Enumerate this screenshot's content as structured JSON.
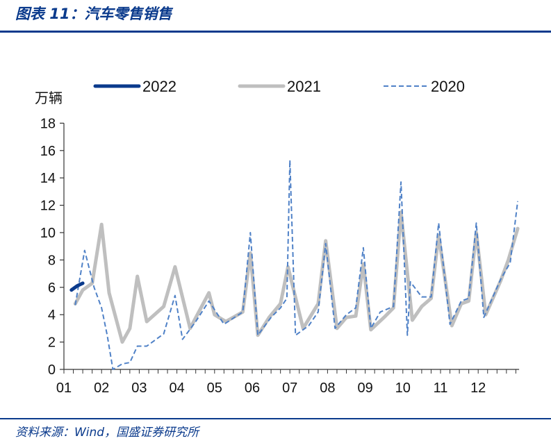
{
  "header": {
    "title": "图表 11：汽车零售销售"
  },
  "footer": {
    "source": "资料来源：Wind，国盛证券研究所"
  },
  "chart_data": {
    "type": "line",
    "ylabel": "万辆",
    "ylim": [
      0,
      18
    ],
    "yticks": [
      0,
      2,
      4,
      6,
      8,
      10,
      12,
      14,
      16,
      18
    ],
    "categories": [
      "01",
      "02",
      "03",
      "04",
      "05",
      "06",
      "07",
      "08",
      "09",
      "10",
      "11",
      "12"
    ],
    "legend_position": "top",
    "grid": false,
    "series": [
      {
        "name": "2022",
        "color": "#0a3a8c",
        "style": "solid-thick",
        "points": [
          [
            1.2,
            5.8
          ],
          [
            1.35,
            6.1
          ],
          [
            1.5,
            6.3
          ]
        ]
      },
      {
        "name": "2021",
        "color": "#bfbfbf",
        "style": "solid-wide",
        "points": [
          [
            1.3,
            4.8
          ],
          [
            1.5,
            5.8
          ],
          [
            1.75,
            6.3
          ],
          [
            2.0,
            10.6
          ],
          [
            2.2,
            5.6
          ],
          [
            2.55,
            2.0
          ],
          [
            2.75,
            3.0
          ],
          [
            2.95,
            6.8
          ],
          [
            3.2,
            3.5
          ],
          [
            3.65,
            4.6
          ],
          [
            3.95,
            7.5
          ],
          [
            4.35,
            3.0
          ],
          [
            4.85,
            5.6
          ],
          [
            5.0,
            4.0
          ],
          [
            5.3,
            3.5
          ],
          [
            5.75,
            4.2
          ],
          [
            5.95,
            8.5
          ],
          [
            6.15,
            2.5
          ],
          [
            6.45,
            3.8
          ],
          [
            6.75,
            4.8
          ],
          [
            6.95,
            7.5
          ],
          [
            7.35,
            3.0
          ],
          [
            7.75,
            4.8
          ],
          [
            7.95,
            9.4
          ],
          [
            8.25,
            3.0
          ],
          [
            8.5,
            3.8
          ],
          [
            8.75,
            3.9
          ],
          [
            8.95,
            7.7
          ],
          [
            9.15,
            2.9
          ],
          [
            9.5,
            3.8
          ],
          [
            9.75,
            4.5
          ],
          [
            9.95,
            11.5
          ],
          [
            10.25,
            3.6
          ],
          [
            10.5,
            4.6
          ],
          [
            10.75,
            5.2
          ],
          [
            10.95,
            9.8
          ],
          [
            11.3,
            3.2
          ],
          [
            11.55,
            4.8
          ],
          [
            11.75,
            5.0
          ],
          [
            11.95,
            10.0
          ],
          [
            12.2,
            4.0
          ],
          [
            12.6,
            6.5
          ],
          [
            12.8,
            8.0
          ],
          [
            13.05,
            10.3
          ]
        ]
      },
      {
        "name": "2020",
        "color": "#4f81c7",
        "style": "dashed",
        "points": [
          [
            1.3,
            4.7
          ],
          [
            1.55,
            8.7
          ],
          [
            1.8,
            6.0
          ],
          [
            2.0,
            4.5
          ],
          [
            2.15,
            2.5
          ],
          [
            2.3,
            0.0
          ],
          [
            2.55,
            0.4
          ],
          [
            2.75,
            0.5
          ],
          [
            2.95,
            1.7
          ],
          [
            3.2,
            1.7
          ],
          [
            3.65,
            2.6
          ],
          [
            3.95,
            5.4
          ],
          [
            4.15,
            2.2
          ],
          [
            4.5,
            3.5
          ],
          [
            4.85,
            5.0
          ],
          [
            5.25,
            3.3
          ],
          [
            5.75,
            4.2
          ],
          [
            5.95,
            10.0
          ],
          [
            6.15,
            2.5
          ],
          [
            6.5,
            3.8
          ],
          [
            6.75,
            4.5
          ],
          [
            6.92,
            5.2
          ],
          [
            7.0,
            15.3
          ],
          [
            7.15,
            2.5
          ],
          [
            7.5,
            3.2
          ],
          [
            7.75,
            4.2
          ],
          [
            7.95,
            9.2
          ],
          [
            8.2,
            3.0
          ],
          [
            8.5,
            4.0
          ],
          [
            8.75,
            4.5
          ],
          [
            8.95,
            8.9
          ],
          [
            9.15,
            3.0
          ],
          [
            9.4,
            4.2
          ],
          [
            9.75,
            4.6
          ],
          [
            9.95,
            13.7
          ],
          [
            10.12,
            2.5
          ],
          [
            10.2,
            6.4
          ],
          [
            10.5,
            5.3
          ],
          [
            10.75,
            5.3
          ],
          [
            10.95,
            10.7
          ],
          [
            11.25,
            3.3
          ],
          [
            11.55,
            5.0
          ],
          [
            11.75,
            5.2
          ],
          [
            11.95,
            10.7
          ],
          [
            12.15,
            3.8
          ],
          [
            12.6,
            6.6
          ],
          [
            12.85,
            7.8
          ],
          [
            13.05,
            12.3
          ]
        ]
      }
    ]
  }
}
